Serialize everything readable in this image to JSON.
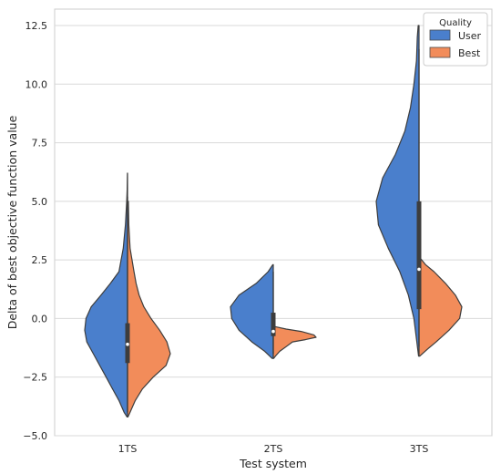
{
  "chart_data": {
    "type": "violin",
    "split": true,
    "title": "",
    "xlabel": "Test system",
    "ylabel": "Delta of best objective function value",
    "categories": [
      "1TS",
      "2TS",
      "3TS"
    ],
    "ylim": [
      -5.0,
      13.2
    ],
    "yticks": [
      -5.0,
      -2.5,
      0.0,
      2.5,
      5.0,
      7.5,
      10.0,
      12.5
    ],
    "ytick_labels": [
      "−5.0",
      "−2.5",
      "0.0",
      "2.5",
      "5.0",
      "7.5",
      "10.0",
      "12.5"
    ],
    "grid": true,
    "legend": {
      "title": "Quality",
      "position": "top-right"
    },
    "series": [
      {
        "name": "User",
        "color": "#4a7fcc",
        "side": "left",
        "violins": [
          {
            "category": "1TS",
            "profile": [
              [
                6.2,
                0.003
              ],
              [
                5.5,
                0.008
              ],
              [
                5.0,
                0.02
              ],
              [
                4.0,
                0.05
              ],
              [
                3.0,
                0.1
              ],
              [
                2.0,
                0.2
              ],
              [
                1.5,
                0.4
              ],
              [
                1.0,
                0.62
              ],
              [
                0.5,
                0.85
              ],
              [
                0.0,
                0.97
              ],
              [
                -0.5,
                1.0
              ],
              [
                -1.0,
                0.95
              ],
              [
                -1.5,
                0.8
              ],
              [
                -2.0,
                0.65
              ],
              [
                -2.5,
                0.5
              ],
              [
                -3.0,
                0.35
              ],
              [
                -3.5,
                0.2
              ],
              [
                -4.0,
                0.08
              ],
              [
                -4.2,
                0.01
              ]
            ],
            "box": {
              "q1": -1.9,
              "median": -1.1,
              "q3": -0.2,
              "whisker_low": -4.0,
              "whisker_high": 5.2
            }
          },
          {
            "category": "2TS",
            "profile": [
              [
                2.3,
                0.01
              ],
              [
                2.0,
                0.12
              ],
              [
                1.5,
                0.4
              ],
              [
                1.0,
                0.8
              ],
              [
                0.5,
                1.0
              ],
              [
                0.0,
                0.97
              ],
              [
                -0.5,
                0.8
              ],
              [
                -1.0,
                0.5
              ],
              [
                -1.4,
                0.2
              ],
              [
                -1.7,
                0.03
              ]
            ],
            "box": {
              "q1": -0.75,
              "median": -0.55,
              "q3": 0.25,
              "whisker_low": -1.5,
              "whisker_high": 2.0
            }
          },
          {
            "category": "3TS",
            "profile": [
              [
                12.5,
                0.02
              ],
              [
                12.0,
                0.04
              ],
              [
                11.0,
                0.06
              ],
              [
                10.0,
                0.12
              ],
              [
                9.0,
                0.2
              ],
              [
                8.0,
                0.33
              ],
              [
                7.0,
                0.55
              ],
              [
                6.0,
                0.85
              ],
              [
                5.0,
                1.0
              ],
              [
                4.0,
                0.95
              ],
              [
                3.0,
                0.72
              ],
              [
                2.0,
                0.45
              ],
              [
                1.0,
                0.25
              ],
              [
                0.0,
                0.12
              ],
              [
                -1.0,
                0.05
              ],
              [
                -1.6,
                0.01
              ]
            ],
            "box": {
              "q1": 0.4,
              "median": 2.1,
              "q3": 5.0,
              "whisker_low": -1.2,
              "whisker_high": 11.5
            }
          }
        ]
      },
      {
        "name": "Best",
        "color": "#f28c5a",
        "side": "right",
        "violins": [
          {
            "category": "1TS",
            "profile": [
              [
                5.0,
                0.02
              ],
              [
                4.0,
                0.03
              ],
              [
                3.0,
                0.06
              ],
              [
                2.0,
                0.15
              ],
              [
                1.5,
                0.2
              ],
              [
                1.0,
                0.27
              ],
              [
                0.5,
                0.38
              ],
              [
                0.0,
                0.55
              ],
              [
                -0.5,
                0.75
              ],
              [
                -1.0,
                0.92
              ],
              [
                -1.5,
                1.0
              ],
              [
                -2.0,
                0.9
              ],
              [
                -2.5,
                0.6
              ],
              [
                -3.0,
                0.35
              ],
              [
                -3.5,
                0.18
              ],
              [
                -4.0,
                0.06
              ],
              [
                -4.2,
                0.01
              ]
            ],
            "box": {
              "q1": -1.9,
              "median": -1.1,
              "q3": -0.2,
              "whisker_low": -4.0,
              "whisker_high": 5.2
            }
          },
          {
            "category": "2TS",
            "profile": [
              [
                -0.35,
                0.05
              ],
              [
                -0.45,
                0.3
              ],
              [
                -0.55,
                0.65
              ],
              [
                -0.7,
                0.95
              ],
              [
                -0.8,
                1.0
              ],
              [
                -0.9,
                0.75
              ],
              [
                -1.0,
                0.45
              ],
              [
                -1.2,
                0.3
              ],
              [
                -1.4,
                0.15
              ],
              [
                -1.6,
                0.05
              ],
              [
                -1.7,
                0.01
              ]
            ],
            "box": {
              "q1": -0.75,
              "median": -0.55,
              "q3": 0.25,
              "whisker_low": -1.5,
              "whisker_high": 2.0
            }
          },
          {
            "category": "3TS",
            "profile": [
              [
                2.6,
                0.02
              ],
              [
                2.3,
                0.15
              ],
              [
                2.0,
                0.35
              ],
              [
                1.5,
                0.62
              ],
              [
                1.0,
                0.85
              ],
              [
                0.5,
                1.0
              ],
              [
                0.0,
                0.95
              ],
              [
                -0.5,
                0.7
              ],
              [
                -1.0,
                0.4
              ],
              [
                -1.3,
                0.2
              ],
              [
                -1.6,
                0.02
              ]
            ],
            "box": {
              "q1": 0.4,
              "median": 2.1,
              "q3": 5.0,
              "whisker_low": -1.2,
              "whisker_high": 11.5
            }
          }
        ]
      }
    ]
  }
}
